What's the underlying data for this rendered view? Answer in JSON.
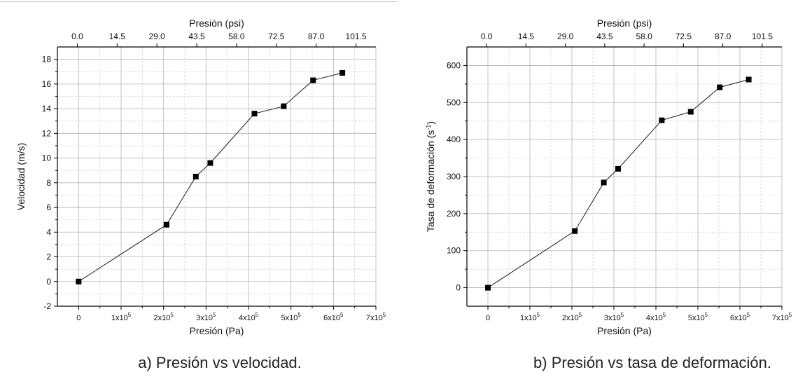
{
  "figures": [
    {
      "caption": "a) Presión vs velocidad.",
      "chart_data": {
        "type": "line",
        "xlabel": "Presión (Pa)",
        "ylabel": "Velocidad (m/s)",
        "top_axis_label": "Presión (psi)",
        "xlim": [
          -50000,
          700000
        ],
        "ylim": [
          -2,
          19
        ],
        "x_ticks": [
          {
            "value": 0,
            "label": "0",
            "exp": ""
          },
          {
            "value": 100000,
            "label": "1x10",
            "exp": "5"
          },
          {
            "value": 200000,
            "label": "2x10",
            "exp": "5"
          },
          {
            "value": 300000,
            "label": "3x10",
            "exp": "5"
          },
          {
            "value": 400000,
            "label": "4x10",
            "exp": "5"
          },
          {
            "value": 500000,
            "label": "5x10",
            "exp": "5"
          },
          {
            "value": 600000,
            "label": "6x10",
            "exp": "5"
          },
          {
            "value": 700000,
            "label": "7x10",
            "exp": "5"
          }
        ],
        "top_ticks": [
          "0.0",
          "14.5",
          "29.0",
          "43.5",
          "58.0",
          "72.5",
          "87.0",
          "101.5"
        ],
        "y_ticks": [
          -2,
          0,
          2,
          4,
          6,
          8,
          10,
          12,
          14,
          16,
          18
        ],
        "grid": true,
        "series": [
          {
            "x": [
              0,
              207000,
              276000,
              310000,
              414000,
              483000,
              552000,
              621000
            ],
            "y": [
              0,
              4.6,
              8.5,
              9.6,
              13.6,
              14.2,
              16.3,
              16.9
            ]
          }
        ]
      }
    },
    {
      "caption": "b) Presión vs tasa de deformación.",
      "chart_data": {
        "type": "line",
        "xlabel": "Presión (Pa)",
        "ylabel_main": "Tasa de deformación (s",
        "ylabel_sup": "-1",
        "ylabel_end": ")",
        "top_axis_label": "Presión (psi)",
        "xlim": [
          -50000,
          700000
        ],
        "ylim": [
          -50,
          650
        ],
        "x_ticks": [
          {
            "value": 0,
            "label": "0",
            "exp": ""
          },
          {
            "value": 100000,
            "label": "1x10",
            "exp": "5"
          },
          {
            "value": 200000,
            "label": "2x10",
            "exp": "5"
          },
          {
            "value": 300000,
            "label": "3x10",
            "exp": "5"
          },
          {
            "value": 400000,
            "label": "4x10",
            "exp": "5"
          },
          {
            "value": 500000,
            "label": "5x10",
            "exp": "5"
          },
          {
            "value": 600000,
            "label": "6x10",
            "exp": "5"
          },
          {
            "value": 700000,
            "label": "7x10",
            "exp": "5"
          }
        ],
        "top_ticks": [
          "0.0",
          "14.5",
          "29.0",
          "43.5",
          "58.0",
          "72.5",
          "87.0",
          "101.5"
        ],
        "y_ticks": [
          0,
          100,
          200,
          300,
          400,
          500,
          600
        ],
        "grid": true,
        "series": [
          {
            "x": [
              0,
              207000,
              276000,
              310000,
              414000,
              483000,
              552000,
              621000
            ],
            "y": [
              0,
              153,
              284,
              321,
              452,
              475,
              541,
              562
            ]
          }
        ]
      }
    }
  ]
}
